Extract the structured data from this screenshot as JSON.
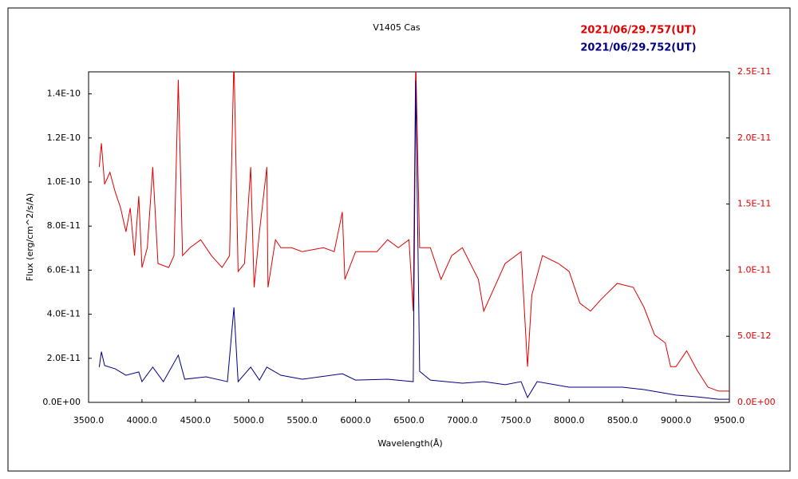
{
  "chart_data": {
    "type": "line",
    "title": "V1405 Cas",
    "x_label": "Wavelength(Å)",
    "y_label": "Flux (erg/cm^2/s/A)",
    "xlim": [
      3500,
      9500
    ],
    "xticks": [
      {
        "value": 3500,
        "label": "3500.0"
      },
      {
        "value": 4000,
        "label": "4000.0"
      },
      {
        "value": 4500,
        "label": "4500.0"
      },
      {
        "value": 5000,
        "label": "5000.0"
      },
      {
        "value": 5500,
        "label": "5500.0"
      },
      {
        "value": 6000,
        "label": "6000.0"
      },
      {
        "value": 6500,
        "label": "6500.0"
      },
      {
        "value": 7000,
        "label": "7000.0"
      },
      {
        "value": 7500,
        "label": "7500.0"
      },
      {
        "value": 8000,
        "label": "8000.0"
      },
      {
        "value": 8500,
        "label": "8500.0"
      },
      {
        "value": 9000,
        "label": "9000.0"
      },
      {
        "value": 9500,
        "label": "9500.0"
      }
    ],
    "ylim": [
      0,
      1.5e-10
    ],
    "yticks": [
      {
        "value": 0,
        "label": "0.0E+00"
      },
      {
        "value": 2e-11,
        "label": "2.0E-11"
      },
      {
        "value": 4e-11,
        "label": "4.0E-11"
      },
      {
        "value": 6e-11,
        "label": "6.0E-11"
      },
      {
        "value": 8e-11,
        "label": "8.0E-11"
      },
      {
        "value": 1e-10,
        "label": "1.0E-10"
      },
      {
        "value": 1.2e-10,
        "label": "1.2E-10"
      },
      {
        "value": 1.4e-10,
        "label": "1.4E-10"
      }
    ],
    "y2lim": [
      0,
      2.5e-11
    ],
    "y2ticks": [
      {
        "value": 0,
        "label": "0.0E+00"
      },
      {
        "value": 5e-12,
        "label": "5.0E-12"
      },
      {
        "value": 1e-11,
        "label": "1.0E-11"
      },
      {
        "value": 1.5e-11,
        "label": "1.5E-11"
      },
      {
        "value": 2e-11,
        "label": "2.0E-11"
      },
      {
        "value": 2.5e-11,
        "label": "2.5E-11"
      }
    ],
    "y2_color": "#e00000",
    "grid": false,
    "series": [
      {
        "name": "2021/06/29.757(UT)",
        "color": "#e00000",
        "axis": "y2",
        "x": [
          3600,
          3620,
          3650,
          3700,
          3750,
          3800,
          3850,
          3890,
          3930,
          3970,
          4000,
          4050,
          4101,
          4150,
          4250,
          4300,
          4340,
          4380,
          4450,
          4550,
          4650,
          4750,
          4820,
          4861,
          4900,
          4960,
          5018,
          5050,
          5100,
          5169,
          5180,
          5250,
          5300,
          5400,
          5500,
          5700,
          5800,
          5876,
          5900,
          6000,
          6200,
          6300,
          6400,
          6500,
          6540,
          6563,
          6600,
          6700,
          6800,
          6900,
          7000,
          7150,
          7200,
          7300,
          7400,
          7550,
          7610,
          7650,
          7750,
          7900,
          8000,
          8100,
          8200,
          8300,
          8450,
          8600,
          8700,
          8800,
          8900,
          8950,
          9000,
          9100,
          9200,
          9300,
          9400,
          9500
        ],
        "values": [
          1.78e-11,
          1.96e-11,
          1.65e-11,
          1.74e-11,
          1.59e-11,
          1.47e-11,
          1.29e-11,
          1.47e-11,
          1.11e-11,
          1.56e-11,
          1.02e-11,
          1.17e-11,
          1.78e-11,
          1.05e-11,
          1.02e-11,
          1.11e-11,
          2.44e-11,
          1.11e-11,
          1.17e-11,
          1.23e-11,
          1.11e-11,
          1.02e-11,
          1.11e-11,
          2.6e-11,
          9.9e-12,
          1.05e-11,
          1.78e-11,
          8.7e-12,
          1.29e-11,
          1.78e-11,
          8.7e-12,
          1.23e-11,
          1.17e-11,
          1.17e-11,
          1.14e-11,
          1.17e-11,
          1.14e-11,
          1.44e-11,
          9.3e-12,
          1.14e-11,
          1.14e-11,
          1.23e-11,
          1.17e-11,
          1.23e-11,
          6.9e-12,
          2.6e-11,
          1.17e-11,
          1.17e-11,
          9.3e-12,
          1.11e-11,
          1.17e-11,
          9.3e-12,
          6.9e-12,
          8.7e-12,
          1.05e-11,
          1.14e-11,
          2.7e-12,
          8.1e-12,
          1.11e-11,
          1.05e-11,
          9.9e-12,
          7.5e-12,
          6.9e-12,
          7.8e-12,
          9e-12,
          8.7e-12,
          7.2e-12,
          5.1e-12,
          4.5e-12,
          2.7e-12,
          2.7e-12,
          3.9e-12,
          2.4e-12,
          1.15e-12,
          8.5e-13,
          8.5e-13
        ]
      },
      {
        "name": "2021/06/29.752(UT)",
        "color": "#000080",
        "x": [
          3600,
          3620,
          3650,
          3750,
          3850,
          3970,
          4000,
          4101,
          4200,
          4340,
          4400,
          4600,
          4800,
          4861,
          4900,
          5018,
          5100,
          5169,
          5300,
          5500,
          5876,
          6000,
          6300,
          6540,
          6563,
          6600,
          6700,
          7000,
          7200,
          7400,
          7550,
          7610,
          7700,
          8000,
          8500,
          8700,
          9000,
          9200,
          9400,
          9500
        ],
        "values": [
          1.6e-11,
          2.3e-11,
          1.67e-11,
          1.52e-11,
          1.23e-11,
          1.38e-11,
          9.4e-12,
          1.6e-11,
          9.4e-12,
          2.14e-11,
          1.05e-11,
          1.16e-11,
          9.4e-12,
          4.31e-11,
          9.4e-12,
          1.6e-11,
          1.01e-11,
          1.6e-11,
          1.23e-11,
          1.05e-11,
          1.3e-11,
          1.01e-11,
          1.05e-11,
          9.4e-12,
          1.46e-10,
          1.41e-11,
          1.01e-11,
          8.7e-12,
          9.4e-12,
          8e-12,
          9.4e-12,
          2.2e-12,
          9.4e-12,
          6.9e-12,
          6.9e-12,
          5.8e-12,
          3.3e-12,
          2.5e-12,
          1.4e-12,
          1.4e-12
        ]
      }
    ]
  }
}
